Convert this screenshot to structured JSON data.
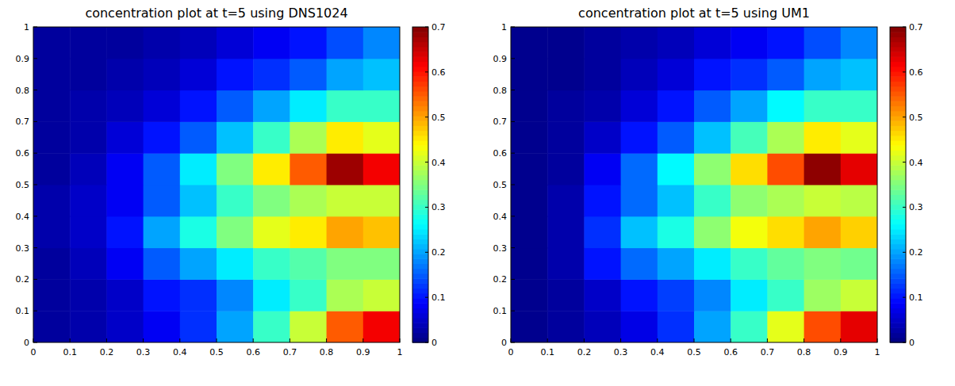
{
  "chart_data": [
    {
      "type": "heatmap",
      "title": "concentration plot at t=5 using DNS1024",
      "x": [
        0.05,
        0.15,
        0.25,
        0.35,
        0.45,
        0.55,
        0.65,
        0.75,
        0.85,
        0.95
      ],
      "y": [
        0.05,
        0.15,
        0.25,
        0.35,
        0.45,
        0.55,
        0.65,
        0.75,
        0.85,
        0.95
      ],
      "z": [
        [
          0.02,
          0.03,
          0.05,
          0.08,
          0.12,
          0.2,
          0.3,
          0.4,
          0.55,
          0.62
        ],
        [
          0.02,
          0.03,
          0.05,
          0.1,
          0.12,
          0.18,
          0.25,
          0.3,
          0.38,
          0.4
        ],
        [
          0.02,
          0.04,
          0.08,
          0.15,
          0.2,
          0.25,
          0.3,
          0.32,
          0.35,
          0.35
        ],
        [
          0.03,
          0.05,
          0.1,
          0.2,
          0.28,
          0.35,
          0.42,
          0.45,
          0.5,
          0.48
        ],
        [
          0.03,
          0.05,
          0.08,
          0.15,
          0.22,
          0.3,
          0.35,
          0.38,
          0.4,
          0.4
        ],
        [
          0.02,
          0.04,
          0.08,
          0.15,
          0.25,
          0.35,
          0.45,
          0.55,
          0.68,
          0.62
        ],
        [
          0.02,
          0.03,
          0.06,
          0.1,
          0.15,
          0.22,
          0.3,
          0.38,
          0.45,
          0.42
        ],
        [
          0.02,
          0.03,
          0.04,
          0.06,
          0.1,
          0.15,
          0.2,
          0.25,
          0.3,
          0.3
        ],
        [
          0.02,
          0.02,
          0.03,
          0.04,
          0.06,
          0.1,
          0.12,
          0.15,
          0.2,
          0.22
        ],
        [
          0.02,
          0.02,
          0.02,
          0.03,
          0.04,
          0.06,
          0.08,
          0.1,
          0.14,
          0.18
        ]
      ],
      "xlim": [
        0,
        1
      ],
      "ylim": [
        0,
        1
      ],
      "xticks": [
        0,
        0.1,
        0.2,
        0.3,
        0.4,
        0.5,
        0.6,
        0.7,
        0.8,
        0.9,
        1
      ],
      "yticks": [
        0,
        0.1,
        0.2,
        0.3,
        0.4,
        0.5,
        0.6,
        0.7,
        0.8,
        0.9,
        1
      ],
      "colorbar_range": [
        0,
        0.7
      ],
      "colorbar_ticks": [
        0,
        0.1,
        0.2,
        0.3,
        0.4,
        0.5,
        0.6,
        0.7
      ]
    },
    {
      "type": "heatmap",
      "title": "concentration plot at t=5 using UM1",
      "x": [
        0.05,
        0.15,
        0.25,
        0.35,
        0.45,
        0.55,
        0.65,
        0.75,
        0.85,
        0.95
      ],
      "y": [
        0.05,
        0.15,
        0.25,
        0.35,
        0.45,
        0.55,
        0.65,
        0.75,
        0.85,
        0.95
      ],
      "z": [
        [
          0.01,
          0.02,
          0.04,
          0.07,
          0.12,
          0.2,
          0.3,
          0.42,
          0.56,
          0.63
        ],
        [
          0.01,
          0.02,
          0.05,
          0.1,
          0.13,
          0.18,
          0.25,
          0.3,
          0.37,
          0.4
        ],
        [
          0.01,
          0.03,
          0.1,
          0.16,
          0.2,
          0.25,
          0.3,
          0.33,
          0.35,
          0.34
        ],
        [
          0.01,
          0.03,
          0.12,
          0.22,
          0.28,
          0.36,
          0.43,
          0.46,
          0.5,
          0.47
        ],
        [
          0.01,
          0.03,
          0.1,
          0.16,
          0.22,
          0.3,
          0.36,
          0.38,
          0.4,
          0.39
        ],
        [
          0.01,
          0.02,
          0.08,
          0.16,
          0.26,
          0.36,
          0.46,
          0.56,
          0.69,
          0.63
        ],
        [
          0.01,
          0.02,
          0.05,
          0.1,
          0.15,
          0.22,
          0.31,
          0.38,
          0.45,
          0.42
        ],
        [
          0.01,
          0.02,
          0.03,
          0.06,
          0.1,
          0.15,
          0.2,
          0.26,
          0.3,
          0.3
        ],
        [
          0.01,
          0.01,
          0.02,
          0.04,
          0.06,
          0.1,
          0.12,
          0.15,
          0.2,
          0.22
        ],
        [
          0.01,
          0.01,
          0.02,
          0.03,
          0.04,
          0.06,
          0.08,
          0.1,
          0.14,
          0.18
        ]
      ],
      "xlim": [
        0,
        1
      ],
      "ylim": [
        0,
        1
      ],
      "xticks": [
        0,
        0.1,
        0.2,
        0.3,
        0.4,
        0.5,
        0.6,
        0.7,
        0.8,
        0.9,
        1
      ],
      "yticks": [
        0,
        0.1,
        0.2,
        0.3,
        0.4,
        0.5,
        0.6,
        0.7,
        0.8,
        0.9,
        1
      ],
      "colorbar_range": [
        0,
        0.7
      ],
      "colorbar_ticks": [
        0,
        0.1,
        0.2,
        0.3,
        0.4,
        0.5,
        0.6,
        0.7
      ]
    }
  ]
}
